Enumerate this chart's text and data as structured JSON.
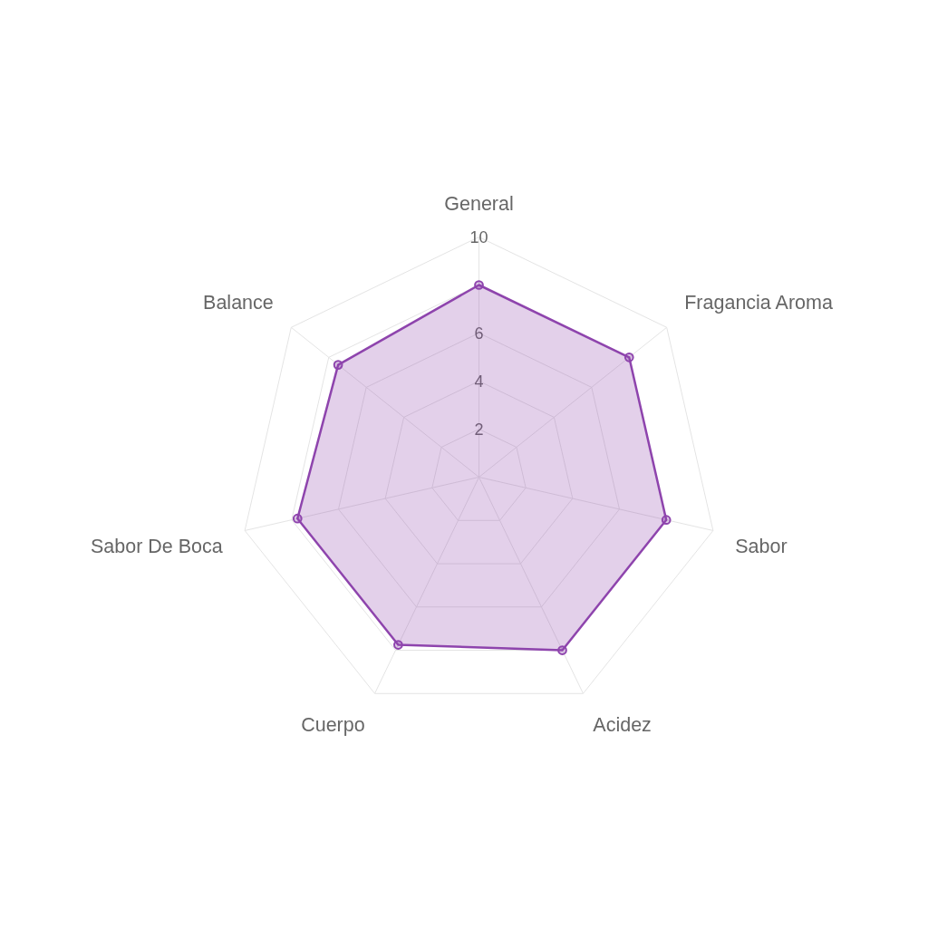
{
  "chart_data": {
    "type": "radar",
    "categories": [
      "General",
      "Fragancia Aroma",
      "Sabor",
      "Acidez",
      "Cuerpo",
      "Sabor De Boca",
      "Balance"
    ],
    "series": [
      {
        "color": "#8e44ad",
        "values": [
          8,
          8,
          8,
          8,
          7.75,
          7.75,
          7.5
        ]
      }
    ],
    "ylim": [
      0,
      10
    ],
    "yticks": [
      2,
      4,
      6,
      10
    ],
    "grid": true,
    "marker": "circle"
  }
}
